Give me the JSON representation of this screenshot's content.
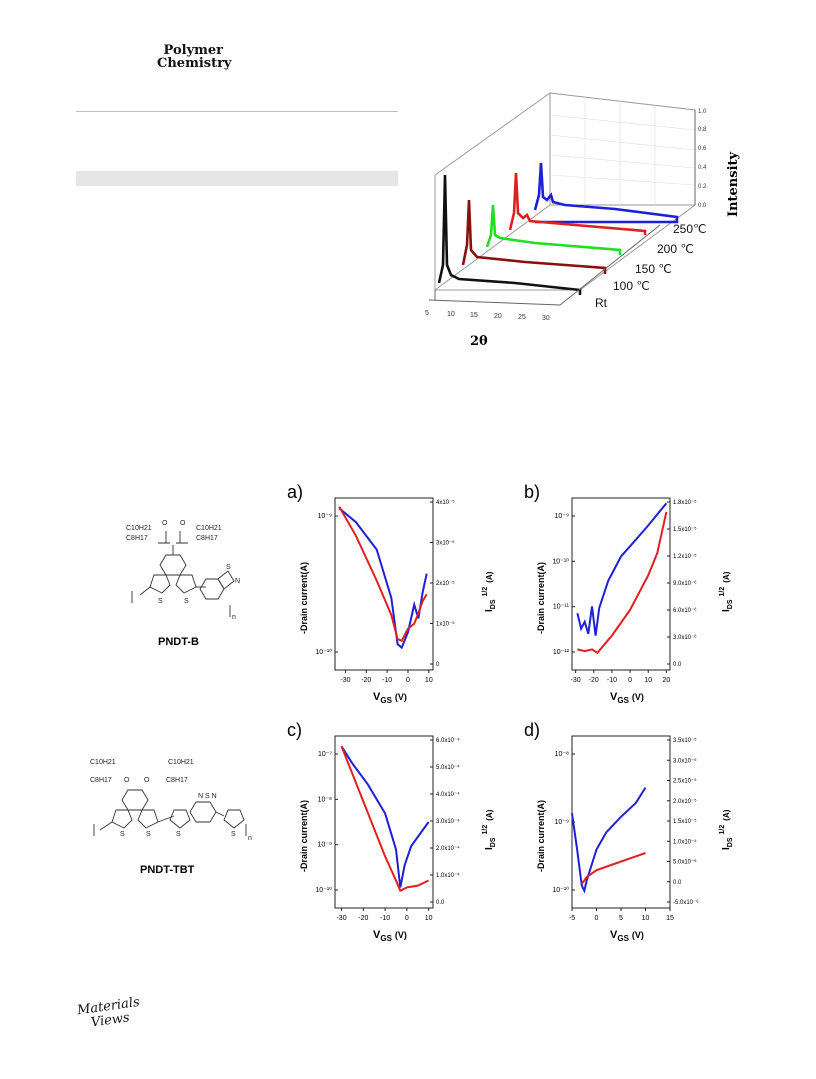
{
  "header": {
    "journal_line1": "Polymer",
    "journal_line2": "Chemistry"
  },
  "xrd": {
    "axis_label_x": "2θ",
    "axis_label_z": "Intensity",
    "x_ticks": [
      "5",
      "10",
      "15",
      "20",
      "25",
      "30"
    ],
    "z_ticks": [
      "0.0",
      "0.2",
      "0.4",
      "0.6",
      "0.8",
      "1.0"
    ],
    "temperatures": [
      "Rt",
      "100 ℃",
      "150 ℃",
      "200 ℃",
      "250℃"
    ]
  },
  "structures": [
    {
      "name": "PNDT-B",
      "substituents": [
        "C10H21",
        "C8H17",
        "C10H21",
        "C8H17"
      ],
      "n": "n"
    },
    {
      "name": "PNDT-TBT",
      "substituents": [
        "C10H21",
        "C8H17",
        "C10H21",
        "C8H17"
      ],
      "n": "n"
    }
  ],
  "transfer": {
    "ylabel_left": "-Drain current(A)",
    "ylabel_right": "I",
    "ylabel_right_sub": "DS",
    "ylabel_right_sup": "1/2",
    "ylabel_right_unit": "(A)",
    "xlabel": "V",
    "xlabel_sub": "GS",
    "xlabel_unit": "(V)"
  },
  "chart_data": [
    {
      "panel": "a)",
      "type": "line",
      "x_ticks": [
        "-30",
        "-20",
        "-10",
        "0",
        "10"
      ],
      "y_left_ticks": [
        "10⁻⁹",
        "10⁻¹⁰"
      ],
      "y_right_ticks": [
        "4x10⁻⁵",
        "3x10⁻⁵",
        "2x10⁻⁵",
        "1x10⁻⁵",
        "0"
      ],
      "xlim": [
        -35,
        12
      ],
      "series": [
        {
          "color": "#1f1fd6",
          "x": [
            -33,
            -25,
            -15,
            -8,
            -5,
            -3,
            0,
            3,
            5,
            7,
            9
          ],
          "y": [
            0.94,
            0.86,
            0.7,
            0.42,
            0.15,
            0.13,
            0.22,
            0.38,
            0.3,
            0.45,
            0.56
          ]
        },
        {
          "color": "#e02020",
          "x": [
            -33,
            -25,
            -15,
            -8,
            -5,
            -3,
            0,
            3,
            5,
            7,
            9
          ],
          "y": [
            0.95,
            0.78,
            0.52,
            0.32,
            0.18,
            0.17,
            0.24,
            0.27,
            0.33,
            0.4,
            0.44
          ]
        }
      ]
    },
    {
      "panel": "b)",
      "type": "line",
      "x_ticks": [
        "-30",
        "-20",
        "-10",
        "0",
        "10",
        "20"
      ],
      "y_left_ticks": [
        "10⁻⁹",
        "10⁻¹⁰",
        "10⁻¹¹",
        "10⁻¹²"
      ],
      "y_right_ticks": [
        "1.8x10⁻⁵",
        "1.5x10⁻⁵",
        "1.2x10⁻⁵",
        "9.0x10⁻⁶",
        "6.0x10⁻⁶",
        "3.0x10⁻⁶",
        "0.0"
      ],
      "xlim": [
        -32,
        22
      ],
      "series": [
        {
          "color": "#1f1fd6",
          "x": [
            -29,
            -27,
            -25,
            -23,
            -21,
            -19,
            -17,
            -12,
            -5,
            0,
            10,
            20
          ],
          "y": [
            0.33,
            0.24,
            0.28,
            0.21,
            0.37,
            0.2,
            0.36,
            0.52,
            0.66,
            0.72,
            0.84,
            0.97
          ]
        },
        {
          "color": "#e02020",
          "x": [
            -29,
            -25,
            -21,
            -18,
            -10,
            0,
            10,
            15,
            20
          ],
          "y": [
            0.12,
            0.11,
            0.12,
            0.1,
            0.2,
            0.35,
            0.55,
            0.68,
            0.92
          ]
        }
      ]
    },
    {
      "panel": "c)",
      "type": "line",
      "x_ticks": [
        "-30",
        "-20",
        "-10",
        "0",
        "10"
      ],
      "y_left_ticks": [
        "10⁻⁷",
        "10⁻⁸",
        "10⁻⁹",
        "10⁻¹⁰"
      ],
      "y_right_ticks": [
        "6.0x10⁻⁴",
        "5.0x10⁻⁴",
        "4.0x10⁻⁴",
        "3.0x10⁻⁴",
        "2.0x10⁻⁴",
        "1.0x10⁻⁴",
        "0.0"
      ],
      "xlim": [
        -33,
        12
      ],
      "series": [
        {
          "color": "#1f1fd6",
          "x": [
            -30,
            -25,
            -18,
            -10,
            -5,
            -3,
            -1,
            2,
            6,
            10
          ],
          "y": [
            0.94,
            0.84,
            0.72,
            0.55,
            0.34,
            0.12,
            0.25,
            0.36,
            0.43,
            0.5
          ]
        },
        {
          "color": "#e02020",
          "x": [
            -30,
            -20,
            -10,
            -5,
            -3,
            0,
            5,
            10
          ],
          "y": [
            0.94,
            0.62,
            0.3,
            0.16,
            0.1,
            0.12,
            0.13,
            0.16
          ]
        }
      ]
    },
    {
      "panel": "d)",
      "type": "line",
      "x_ticks": [
        "-5",
        "0",
        "5",
        "10",
        "15"
      ],
      "y_left_ticks": [
        "10⁻⁸",
        "10⁻⁹",
        "10⁻¹⁰"
      ],
      "y_right_ticks": [
        "3.5x10⁻⁵",
        "3.0x10⁻⁵",
        "2.5x10⁻⁵",
        "2.0x10⁻⁵",
        "1.5x10⁻⁵",
        "1.0x10⁻⁵",
        "5.0x10⁻⁶",
        "0.0",
        "-5.0x10⁻⁶"
      ],
      "xlim": [
        -5,
        15
      ],
      "series": [
        {
          "color": "#1f1fd6",
          "x": [
            -5,
            -4,
            -3,
            -2.5,
            -2,
            0,
            2,
            5,
            8,
            10
          ],
          "y": [
            0.55,
            0.35,
            0.13,
            0.1,
            0.16,
            0.34,
            0.44,
            0.53,
            0.61,
            0.7
          ]
        },
        {
          "color": "#e02020",
          "x": [
            -3,
            -2,
            0,
            3,
            6,
            10
          ],
          "y": [
            0.14,
            0.18,
            0.22,
            0.25,
            0.28,
            0.32
          ]
        }
      ]
    }
  ],
  "footer": {
    "logo_line1": "Materials",
    "logo_line2": "Views"
  }
}
